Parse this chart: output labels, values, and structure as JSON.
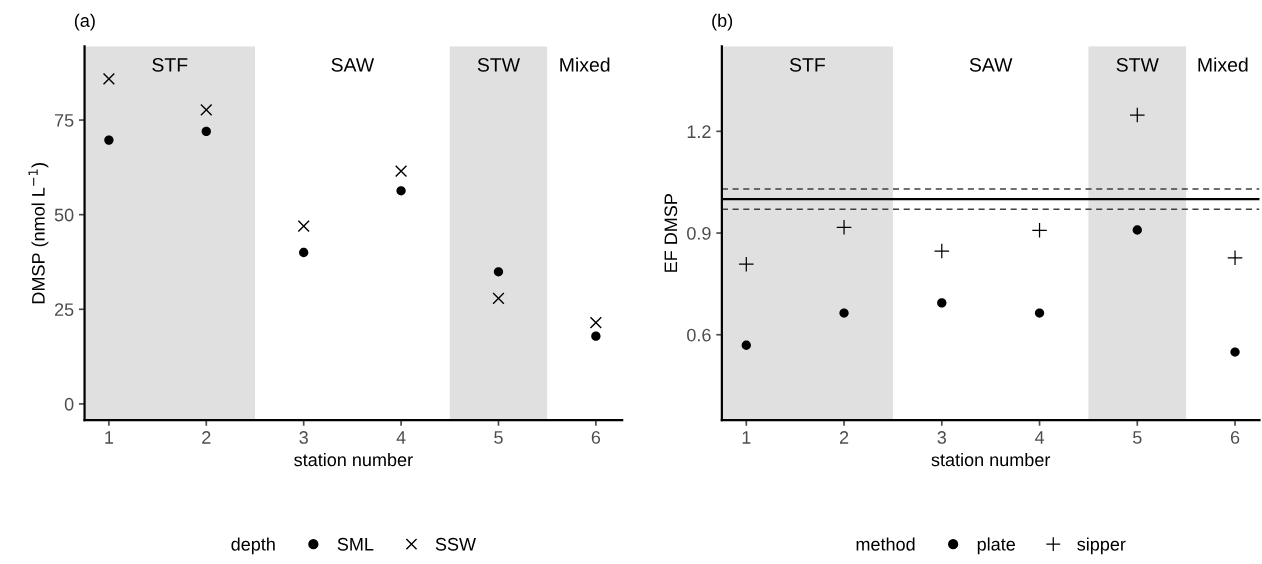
{
  "chart_data": [
    {
      "type": "scatter",
      "title": "(a)",
      "xlabel": "station number",
      "ylabel": "DMSP (nmol L$^{−1}$)",
      "legend_title": "depth",
      "x": [
        1,
        2,
        3,
        4,
        5,
        6
      ],
      "series": [
        {
          "name": "SML",
          "color": "#000000",
          "marker": "circle",
          "values": [
            69.7,
            72.0,
            40.0,
            56.3,
            34.9,
            17.9
          ]
        },
        {
          "name": "SSW",
          "color": "#000000",
          "marker": "cross",
          "values": [
            85.9,
            77.7,
            47.0,
            61.5,
            27.9,
            21.5
          ]
        }
      ],
      "bands": [
        {
          "axis": "x",
          "from": 0.75,
          "to": 2.5,
          "label": "STF",
          "color": "#e0e0e0"
        },
        {
          "axis": "x",
          "from": 4.5,
          "to": 5.5,
          "label": "STW",
          "color": "#e0e0e0"
        }
      ],
      "annotations": [
        "SAW",
        "Mixed"
      ],
      "xlim": [
        0.75,
        6.27
      ],
      "xticks": [
        1,
        2,
        3,
        4,
        5,
        6
      ],
      "ylim": [
        -4.3,
        94.5
      ],
      "yticks": [
        0,
        25,
        50,
        75
      ],
      "grid": false,
      "legend": "bottom"
    },
    {
      "type": "scatter",
      "title": "(b)",
      "xlabel": "station number",
      "ylabel": "EF DMSP",
      "legend_title": "method",
      "x": [
        1,
        2,
        3,
        4,
        5,
        6
      ],
      "series": [
        {
          "name": "plate",
          "color": "#000000",
          "marker": "circle",
          "values": [
            0.569,
            0.664,
            0.694,
            0.664,
            0.909,
            0.549
          ]
        },
        {
          "name": "sipper",
          "color": "#000000",
          "marker": "plus",
          "values": [
            0.808,
            0.917,
            0.847,
            0.908,
            1.248,
            0.827
          ]
        }
      ],
      "bands": [
        {
          "axis": "x",
          "from": 0.75,
          "to": 2.5,
          "label": "STF",
          "color": "#e0e0e0"
        },
        {
          "axis": "x",
          "from": 4.5,
          "to": 5.5,
          "label": "STW",
          "color": "#e0e0e0"
        }
      ],
      "annotations": [
        "SAW",
        "Mixed"
      ],
      "ref_lines": [
        {
          "axis": "y",
          "value": 1.0,
          "color": "#000000",
          "line_style": "solid"
        },
        {
          "axis": "y",
          "value": 1.03,
          "color": "#404040",
          "line_style": "dashed"
        },
        {
          "axis": "y",
          "value": 0.97,
          "color": "#404040",
          "line_style": "dashed"
        }
      ],
      "xlim": [
        0.75,
        6.25
      ],
      "xticks": [
        1,
        2,
        3,
        4,
        5,
        6
      ],
      "ylim": [
        0.348,
        1.451
      ],
      "yticks": [
        0.6,
        0.9,
        1.2
      ],
      "grid": false,
      "legend": "bottom"
    }
  ]
}
